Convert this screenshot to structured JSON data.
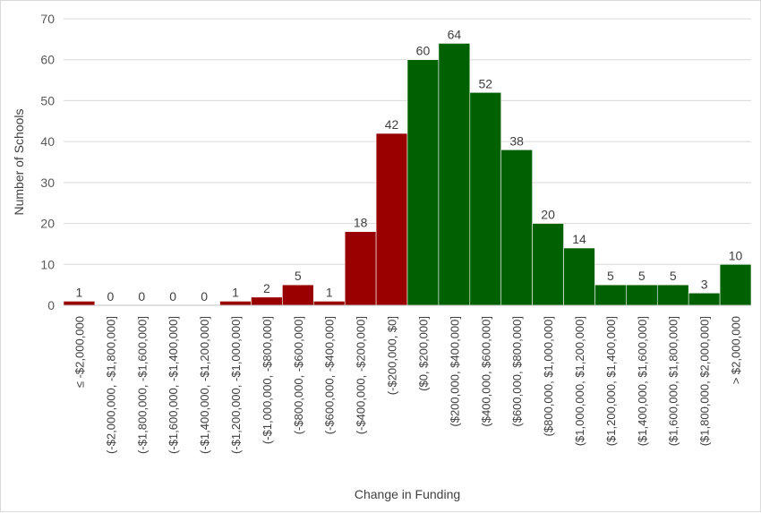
{
  "chart_data": {
    "type": "bar",
    "title": "",
    "xlabel": "Change in Funding",
    "ylabel": "Number of Schools",
    "ylim": [
      0,
      70
    ],
    "yticks": [
      0,
      10,
      20,
      30,
      40,
      50,
      60,
      70
    ],
    "grid": true,
    "legend": "none",
    "colors": {
      "negative": "#990000",
      "positive": "#006100"
    },
    "categories": [
      "≤ -$2,000,000",
      "(-$2,000,000, -$1,800,000]",
      "(-$1,800,000, -$1,600,000]",
      "(-$1,600,000, -$1,400,000]",
      "(-$1,400,000, -$1,200,000]",
      "(-$1,200,000, -$1,000,000]",
      "(-$1,000,000, -$800,000]",
      "(-$800,000, -$600,000]",
      "(-$600,000, -$400,000]",
      "(-$400,000, -$200,000]",
      "(-$200,000, $0]",
      "($0, $200,000]",
      "($200,000, $400,000]",
      "($400,000, $600,000]",
      "($600,000, $800,000]",
      "($800,000, $1,000,000]",
      "($1,000,000, $1,200,000]",
      "($1,200,000, $1,400,000]",
      "($1,400,000, $1,600,000]",
      "($1,600,000, $1,800,000]",
      "($1,800,000, $2,000,000]",
      "> $2,000,000"
    ],
    "values": [
      1,
      0,
      0,
      0,
      0,
      1,
      2,
      5,
      1,
      18,
      42,
      60,
      64,
      52,
      38,
      20,
      14,
      5,
      5,
      5,
      3,
      10
    ],
    "bar_color_group": [
      "negative",
      "negative",
      "negative",
      "negative",
      "negative",
      "negative",
      "negative",
      "negative",
      "negative",
      "negative",
      "negative",
      "positive",
      "positive",
      "positive",
      "positive",
      "positive",
      "positive",
      "positive",
      "positive",
      "positive",
      "positive",
      "positive"
    ]
  }
}
